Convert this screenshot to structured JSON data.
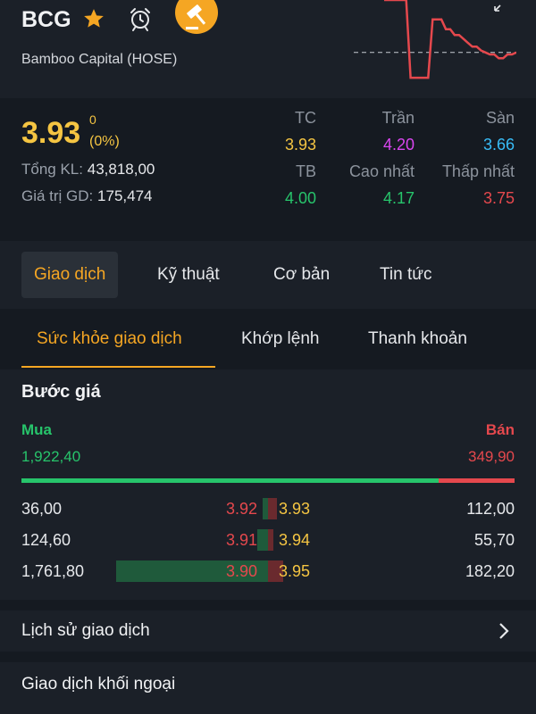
{
  "header": {
    "ticker": "BCG",
    "company": "Bamboo Capital (HOSE)",
    "icons": [
      "star-icon",
      "alarm-icon",
      "auction-gavel-icon",
      "expand-icon"
    ],
    "colors": {
      "star": "#f5a623",
      "gavel_bg": "#f5a623",
      "spark_line": "#e5484d"
    }
  },
  "sparkline": {
    "reference_price": 3.93,
    "ylim": [
      3.75,
      4.2
    ],
    "points": [
      4.2,
      4.2,
      4.2,
      4.2,
      4.2,
      4.2,
      3.8,
      3.8,
      3.8,
      3.8,
      3.8,
      4.1,
      4.1,
      4.1,
      4.05,
      4.05,
      4.02,
      4.02,
      4.0,
      3.98,
      3.96,
      3.96,
      3.94,
      3.93,
      3.92,
      3.92,
      3.9,
      3.9,
      3.92,
      3.92,
      3.93
    ]
  },
  "quote": {
    "price": "3.93",
    "change": "0",
    "change_pct": "(0%)",
    "total_volume_label": "Tổng KL:",
    "total_volume": "43,818,00",
    "trade_value_label": "Giá trị GD:",
    "trade_value": "175,474"
  },
  "stats": [
    {
      "label": "TC",
      "value": "3.93",
      "color": "#f5c542"
    },
    {
      "label": "Trần",
      "value": "4.20",
      "color": "#d946ef"
    },
    {
      "label": "Sàn",
      "value": "3.66",
      "color": "#38bdf8"
    },
    {
      "label": "TB",
      "value": "4.00",
      "color": "#27c46b"
    },
    {
      "label": "Cao nhất",
      "value": "4.17",
      "color": "#27c46b"
    },
    {
      "label": "Thấp nhất",
      "value": "3.75",
      "color": "#e5484d"
    }
  ],
  "tabs": [
    {
      "label": "Giao dịch",
      "active": true
    },
    {
      "label": "Kỹ thuật",
      "active": false
    },
    {
      "label": "Cơ bản",
      "active": false
    },
    {
      "label": "Tin tức",
      "active": false
    }
  ],
  "subtabs": [
    {
      "label": "Sức khỏe giao dịch",
      "active": true
    },
    {
      "label": "Khớp lệnh",
      "active": false
    },
    {
      "label": "Thanh khoản",
      "active": false
    }
  ],
  "orderbook": {
    "title": "Bước giá",
    "buy_label": "Mua",
    "sell_label": "Bán",
    "buy_total": "1,922,40",
    "sell_total": "349,90",
    "buy_ratio": 0.846,
    "rows": [
      {
        "buy_vol": "36,00",
        "buy_price": "3.92",
        "sell_price": "3.93",
        "sell_vol": "112,00",
        "buy_share": 0.02,
        "sell_share": 0.06
      },
      {
        "buy_vol": "124,60",
        "buy_price": "3.91",
        "sell_price": "3.94",
        "sell_vol": "55,70",
        "buy_share": 0.07,
        "sell_share": 0.03
      },
      {
        "buy_vol": "1,761,80",
        "buy_price": "3.90",
        "sell_price": "3.95",
        "sell_vol": "182,20",
        "buy_share": 1.0,
        "sell_share": 0.1
      }
    ],
    "colors": {
      "buy_price": "#e5484d",
      "sell_price": "#f5c542"
    }
  },
  "history": {
    "label": "Lịch sử giao dịch"
  },
  "foreign": {
    "label": "Giao dịch khối ngoại"
  }
}
